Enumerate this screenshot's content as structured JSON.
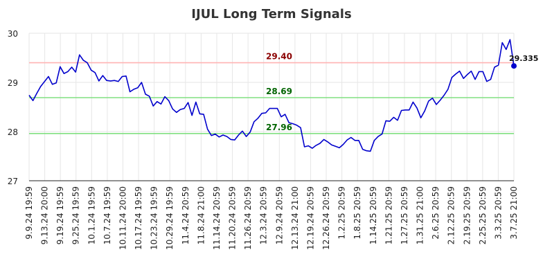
{
  "chart_data": {
    "type": "line",
    "title": "IJUL Long Term Signals",
    "xlabel": "",
    "ylabel": "",
    "ylim": [
      27,
      30
    ],
    "yticks": [
      "27",
      "28",
      "29",
      "30"
    ],
    "grid": true,
    "x_tick_labels": [
      "9.9.24 19:59",
      "9.13.24 20:00",
      "9.19.24 19:59",
      "9.25.24 19:59",
      "10.1.24 19:59",
      "10.7.24 19:59",
      "10.11.24 20:00",
      "10.17.24 19:59",
      "10.23.24 19:59",
      "10.29.24 19:59",
      "11.4.24 20:59",
      "11.8.24 21:00",
      "11.14.24 20:59",
      "11.20.24 20:59",
      "11.26.24 20:59",
      "12.3.24 20:59",
      "12.9.24 20:59",
      "12.13.24 21:00",
      "12.19.24 20:59",
      "12.26.24 20:59",
      "1.2.25 20:59",
      "1.8.25 20:59",
      "1.14.25 20:59",
      "1.21.25 20:59",
      "1.27.25 20:59",
      "1.31.25 21:00",
      "2.6.25 20:59",
      "2.12.25 20:59",
      "2.19.25 20:59",
      "2.25.25 20:59",
      "3.3.25 20:59",
      "3.7.25 21:00"
    ],
    "signal_lines": [
      {
        "value": 29.4,
        "label": "29.40",
        "color": "#ffb3b3",
        "label_color": "#8b0000"
      },
      {
        "value": 28.69,
        "label": "28.69",
        "color": "#80e080",
        "label_color": "#006400"
      },
      {
        "value": 27.96,
        "label": "27.96",
        "color": "#80e080",
        "label_color": "#006400"
      }
    ],
    "last_value": {
      "value": 29.335,
      "label": "29.335"
    },
    "series_color": "#0000cc",
    "series": [
      {
        "values": [
          28.74,
          28.63,
          28.78,
          28.92,
          29.02,
          29.12,
          28.96,
          28.99,
          29.32,
          29.18,
          29.22,
          29.31,
          29.21,
          29.56,
          29.45,
          29.4,
          29.25,
          29.2,
          29.03,
          29.14,
          29.04,
          29.03,
          29.04,
          29.02,
          29.12,
          29.13,
          28.81,
          28.86,
          28.89,
          29.0,
          28.76,
          28.72,
          28.52,
          28.61,
          28.56,
          28.71,
          28.63,
          28.46,
          28.39,
          28.45,
          28.47,
          28.59,
          28.33,
          28.6,
          28.36,
          28.35,
          28.05,
          27.92,
          27.95,
          27.89,
          27.93,
          27.9,
          27.84,
          27.83,
          27.93,
          28.01,
          27.9,
          27.99,
          28.2,
          28.27,
          28.37,
          28.38,
          28.47,
          28.47,
          28.47,
          28.3,
          28.35,
          28.18,
          28.16,
          28.13,
          28.08,
          27.69,
          27.71,
          27.66,
          27.72,
          27.76,
          27.84,
          27.79,
          27.73,
          27.7,
          27.67,
          27.74,
          27.83,
          27.88,
          27.82,
          27.82,
          27.64,
          27.61,
          27.6,
          27.82,
          27.9,
          27.95,
          28.22,
          28.21,
          28.29,
          28.23,
          28.43,
          28.44,
          28.44,
          28.6,
          28.48,
          28.28,
          28.42,
          28.62,
          28.68,
          28.55,
          28.64,
          28.74,
          28.86,
          29.1,
          29.17,
          29.23,
          29.08,
          29.16,
          29.23,
          29.06,
          29.22,
          29.22,
          29.02,
          29.06,
          29.31,
          29.35,
          29.81,
          29.67,
          29.87,
          29.335
        ]
      }
    ]
  }
}
